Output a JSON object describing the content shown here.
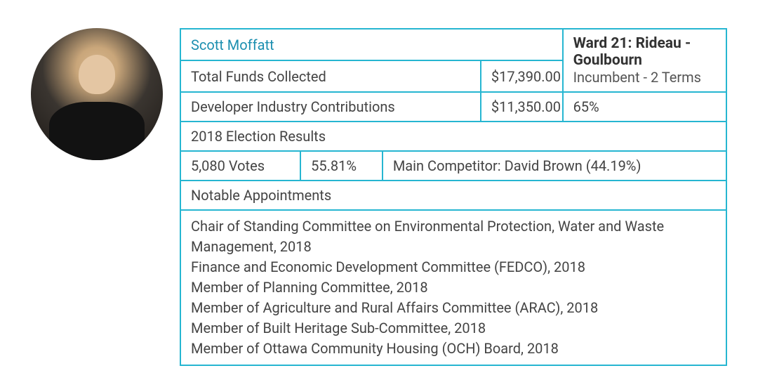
{
  "colors": {
    "border": "#26b6d1",
    "name": "#1c8fb0",
    "text": "#444444",
    "bold": "#333333"
  },
  "candidate": {
    "name": "Scott Moffatt",
    "ward": "Ward 21: Rideau - Goulbourn",
    "incumbency": "Incumbent - 2 Terms"
  },
  "funds": {
    "total_label": "Total Funds Collected",
    "total_value": "$17,390.00",
    "dev_label": "Developer Industry Contributions",
    "dev_value": "$11,350.00",
    "dev_pct": "65%"
  },
  "election": {
    "header": "2018 Election Results",
    "votes": "5,080 Votes",
    "share": "55.81%",
    "competitor": "Main Competitor: David Brown (44.19%)"
  },
  "appointments": {
    "header": "Notable Appointments",
    "items": [
      "Chair of Standing Committee on Environmental Protection, Water and Waste Management, 2018",
      "Finance and Economic Development Committee (FEDCO), 2018",
      "Member of Planning Committee, 2018",
      "Member of Agriculture and Rural Affairs Committee (ARAC), 2018",
      "Member of Built Heritage Sub-Committee, 2018",
      "Member of Ottawa Community Housing (OCH) Board, 2018"
    ]
  },
  "layout": {
    "col_widths_pct": [
      22,
      15,
      18,
      15,
      30
    ]
  }
}
